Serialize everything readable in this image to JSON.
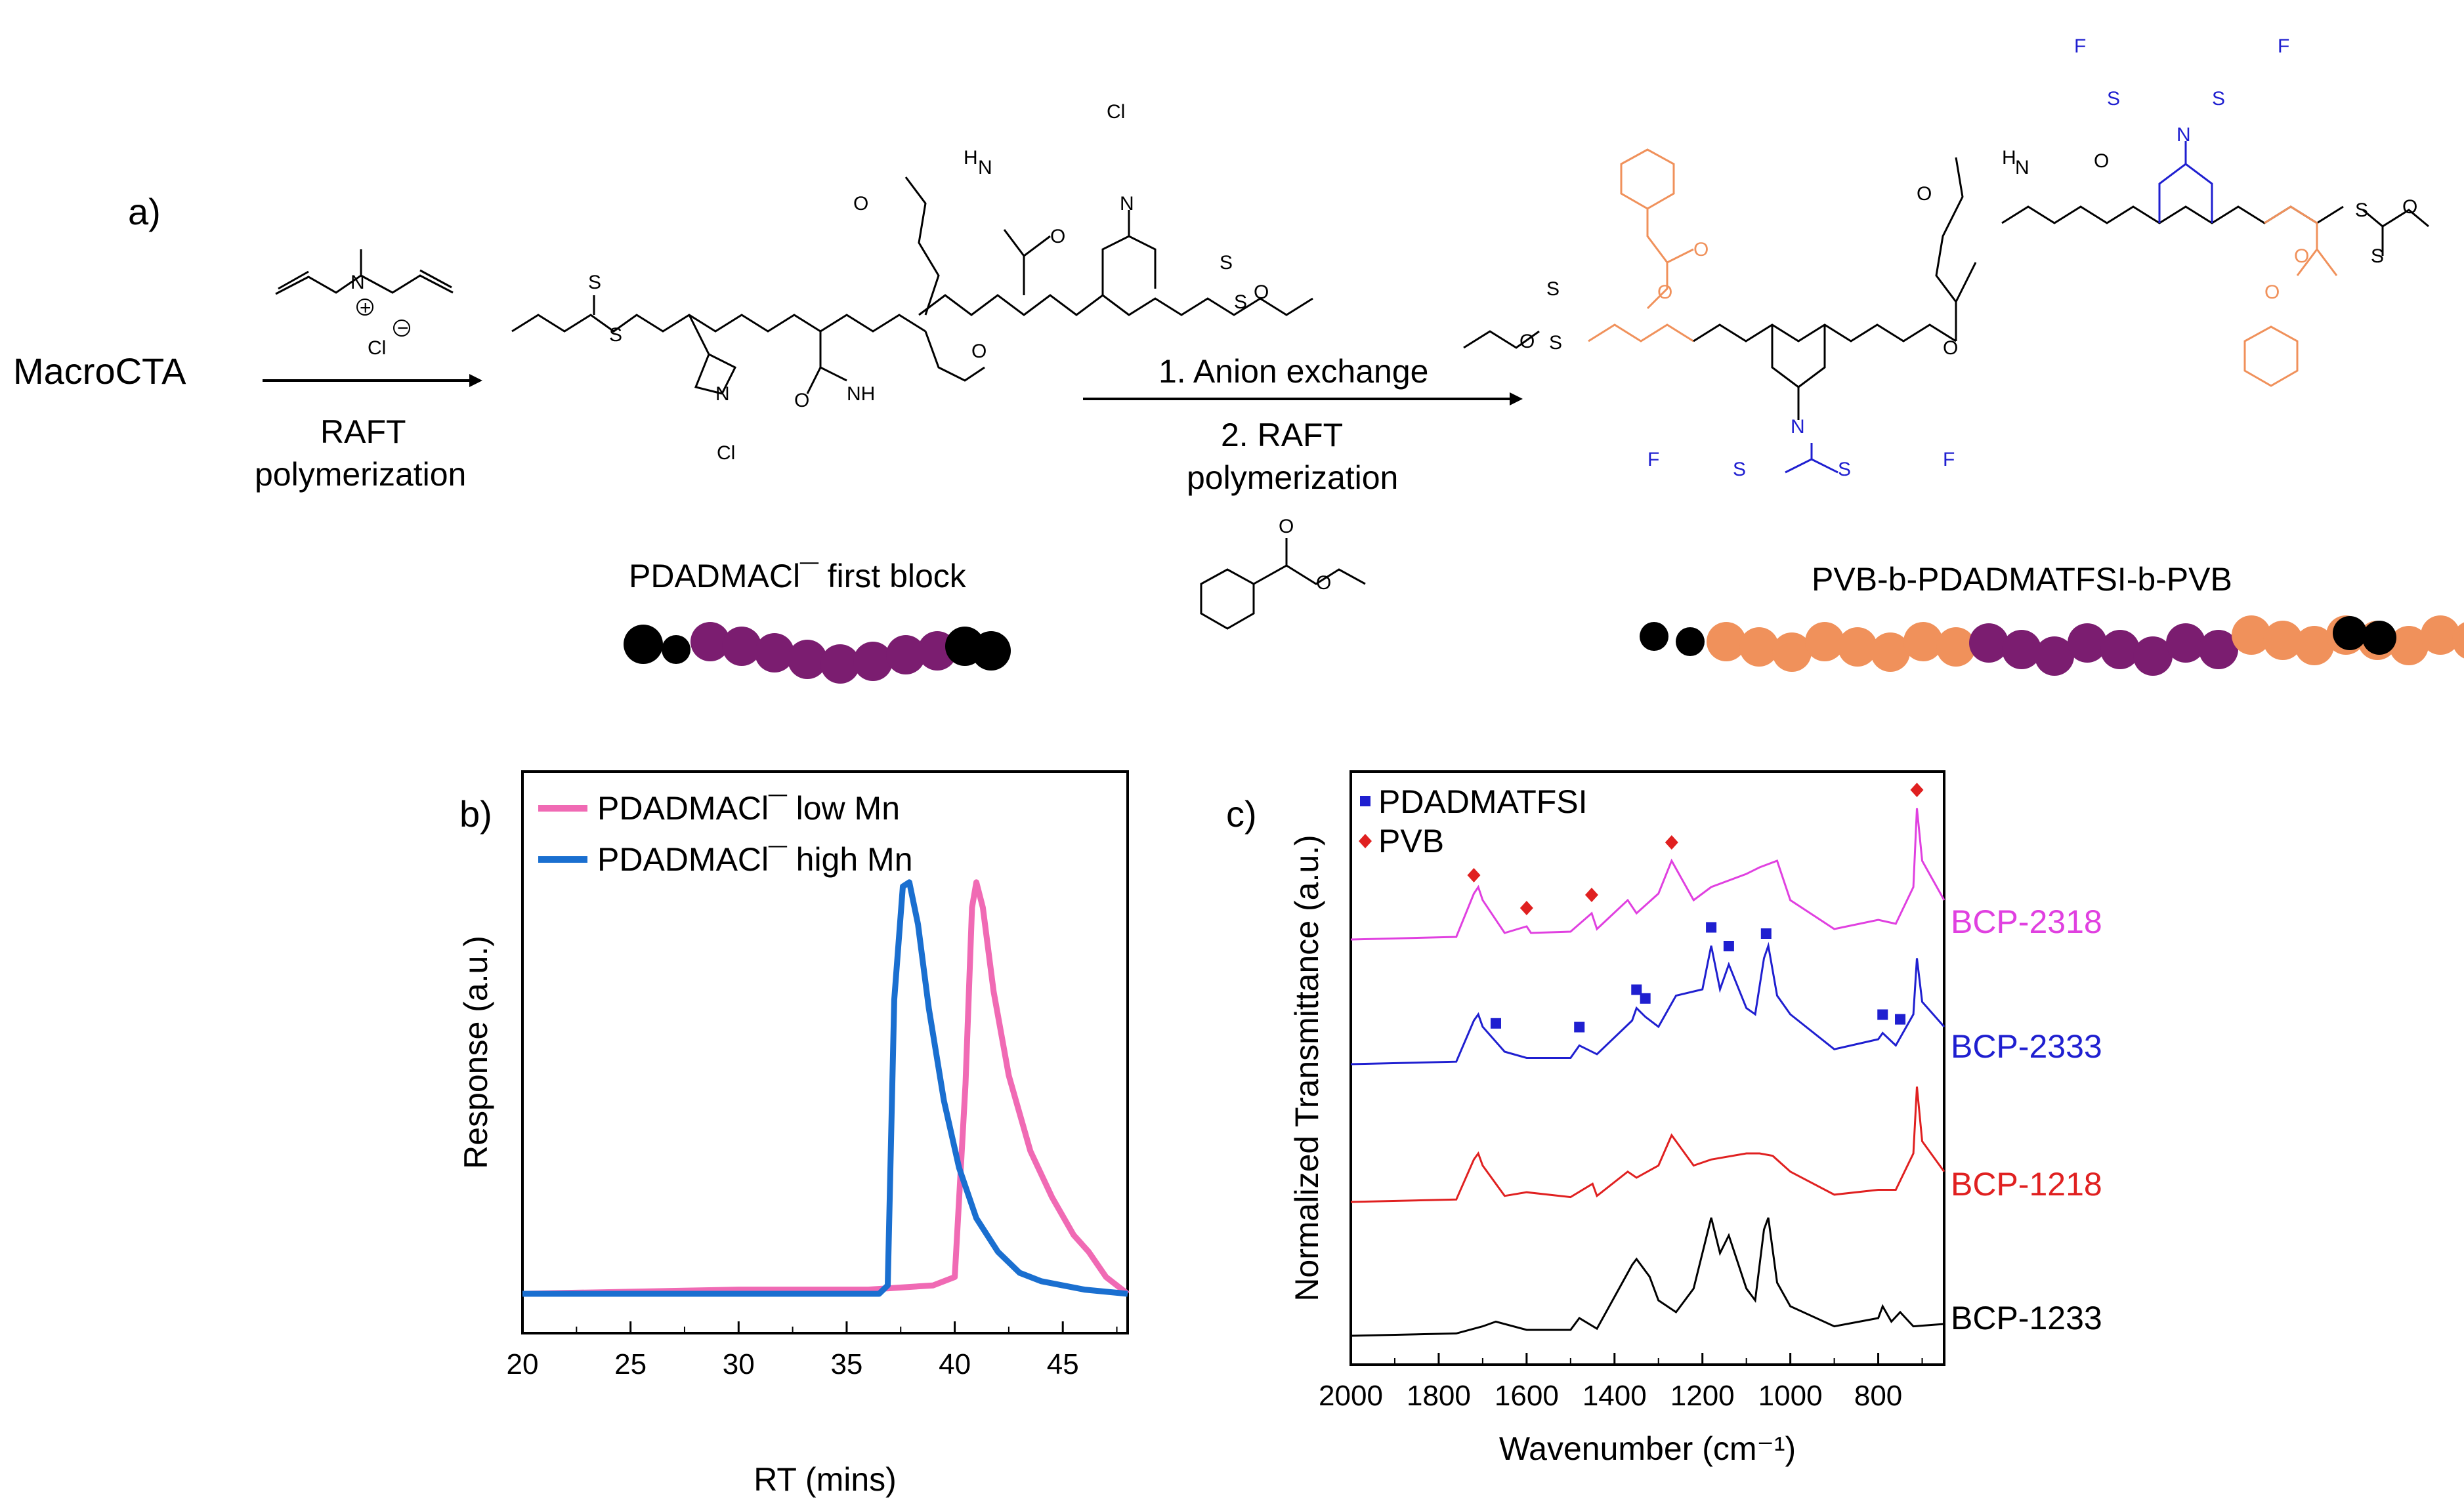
{
  "panel_a": {
    "label": "a)",
    "start": "MacroCTA",
    "step1_condition": "RAFT",
    "step1_condition2": "polymerization",
    "step2_condition1": "1. Anion exchange",
    "step2_condition2a": "2. RAFT",
    "step2_condition2b": "polymerization",
    "first_block_caption": "PDADMACl¯ first block",
    "triblock_caption": "PVB-b-PDADMATFSI-b-PVB",
    "monomer_anion": "Cl",
    "colors": {
      "pvb": "#f0915b",
      "pdadma": "#7b1d70",
      "end": "#000000",
      "tfsi": "#1f1fd0"
    }
  },
  "chart_data": [
    {
      "panel": "b)",
      "type": "line",
      "xlabel": "RT (mins)",
      "ylabel": "Response (a.u.)",
      "xlim": [
        20,
        48
      ],
      "xticks": [
        20,
        25,
        30,
        35,
        40,
        45
      ],
      "legend_position": "top-left",
      "series": [
        {
          "name": "PDADMACl¯ low Mn",
          "color": "#f06ab4",
          "x": [
            20,
            30,
            36,
            39,
            40,
            40.5,
            40.8,
            41,
            41.3,
            41.8,
            42.5,
            43.5,
            44.5,
            45.5,
            46.2,
            47,
            48
          ],
          "y": [
            0,
            0.01,
            0.01,
            0.02,
            0.04,
            0.5,
            0.92,
            0.98,
            0.92,
            0.72,
            0.52,
            0.34,
            0.23,
            0.14,
            0.1,
            0.04,
            0.0
          ]
        },
        {
          "name": "PDADMACl¯ high Mn",
          "color": "#1a6fd0",
          "x": [
            20,
            30,
            36.5,
            36.9,
            37.2,
            37.6,
            37.9,
            38.3,
            38.8,
            39.5,
            40.2,
            41,
            42,
            43,
            44,
            46,
            48
          ],
          "y": [
            0,
            0.0,
            0.0,
            0.02,
            0.7,
            0.97,
            0.98,
            0.88,
            0.68,
            0.46,
            0.3,
            0.18,
            0.1,
            0.05,
            0.03,
            0.01,
            0.0
          ]
        }
      ]
    },
    {
      "panel": "c)",
      "type": "line",
      "xlabel": "Wavenumber (cm⁻¹)",
      "ylabel": "Normalized Transmittance (a.u.)",
      "xlim": [
        2000,
        650
      ],
      "xticks": [
        2000,
        1800,
        1600,
        1400,
        1200,
        1000,
        800
      ],
      "legend_position": "top-left",
      "legend": [
        {
          "name": "PDADMATFSI",
          "marker": "square",
          "color": "#1f1fd0"
        },
        {
          "name": "PVB",
          "marker": "diamond",
          "color": "#e02020"
        }
      ],
      "series": [
        {
          "name": "BCP-2318",
          "color": "#e040e0",
          "offset": 3,
          "x": [
            2000,
            1760,
            1720,
            1710,
            1700,
            1650,
            1600,
            1590,
            1500,
            1452,
            1440,
            1370,
            1350,
            1300,
            1270,
            1220,
            1180,
            1100,
            1070,
            1030,
            1000,
            900,
            800,
            760,
            720,
            712,
            700,
            650
          ],
          "y": [
            0,
            0.02,
            0.35,
            0.4,
            0.3,
            0.05,
            0.1,
            0.05,
            0.06,
            0.2,
            0.08,
            0.3,
            0.2,
            0.35,
            0.6,
            0.3,
            0.4,
            0.5,
            0.55,
            0.6,
            0.3,
            0.08,
            0.15,
            0.12,
            0.4,
            1.0,
            0.6,
            0.3
          ],
          "markers": [
            {
              "x": 1720,
              "type": "PVB"
            },
            {
              "x": 1600,
              "type": "PVB"
            },
            {
              "x": 1452,
              "type": "PVB"
            },
            {
              "x": 1270,
              "type": "PVB"
            },
            {
              "x": 712,
              "type": "PVB"
            }
          ]
        },
        {
          "name": "BCP-2333",
          "color": "#1f1fd0",
          "offset": 2,
          "x": [
            2000,
            1760,
            1720,
            1710,
            1700,
            1650,
            1600,
            1500,
            1480,
            1440,
            1360,
            1350,
            1330,
            1300,
            1260,
            1200,
            1180,
            1160,
            1140,
            1100,
            1080,
            1060,
            1050,
            1030,
            1000,
            900,
            800,
            790,
            760,
            720,
            712,
            700,
            650
          ],
          "y": [
            0,
            0.02,
            0.35,
            0.4,
            0.3,
            0.1,
            0.05,
            0.05,
            0.15,
            0.08,
            0.35,
            0.45,
            0.38,
            0.3,
            0.55,
            0.6,
            0.95,
            0.6,
            0.8,
            0.45,
            0.4,
            0.85,
            0.95,
            0.55,
            0.4,
            0.12,
            0.2,
            0.25,
            0.15,
            0.4,
            0.85,
            0.5,
            0.3
          ],
          "markers": [
            {
              "x": 1670,
              "type": "PDADMATFSI"
            },
            {
              "x": 1480,
              "type": "PDADMATFSI"
            },
            {
              "x": 1350,
              "type": "PDADMATFSI"
            },
            {
              "x": 1330,
              "type": "PDADMATFSI"
            },
            {
              "x": 1180,
              "type": "PDADMATFSI"
            },
            {
              "x": 1140,
              "type": "PDADMATFSI"
            },
            {
              "x": 1055,
              "type": "PDADMATFSI"
            },
            {
              "x": 790,
              "type": "PDADMATFSI"
            },
            {
              "x": 750,
              "type": "PDADMATFSI"
            }
          ]
        },
        {
          "name": "BCP-1218",
          "color": "#e02020",
          "offset": 1,
          "x": [
            2000,
            1760,
            1720,
            1710,
            1700,
            1650,
            1600,
            1500,
            1450,
            1440,
            1370,
            1350,
            1300,
            1270,
            1220,
            1180,
            1100,
            1070,
            1040,
            1000,
            900,
            800,
            760,
            720,
            712,
            700,
            650
          ],
          "y": [
            0,
            0.02,
            0.35,
            0.4,
            0.3,
            0.05,
            0.08,
            0.04,
            0.15,
            0.05,
            0.25,
            0.2,
            0.3,
            0.55,
            0.3,
            0.35,
            0.4,
            0.4,
            0.38,
            0.25,
            0.06,
            0.1,
            0.1,
            0.4,
            0.95,
            0.5,
            0.25
          ]
        },
        {
          "name": "BCP-1233",
          "color": "#000000",
          "offset": 0,
          "x": [
            2000,
            1760,
            1700,
            1670,
            1600,
            1500,
            1480,
            1440,
            1360,
            1350,
            1320,
            1300,
            1260,
            1220,
            1180,
            1160,
            1140,
            1100,
            1080,
            1060,
            1050,
            1030,
            1000,
            900,
            800,
            790,
            770,
            750,
            720,
            650
          ],
          "y": [
            0,
            0.02,
            0.08,
            0.12,
            0.05,
            0.05,
            0.15,
            0.06,
            0.6,
            0.65,
            0.5,
            0.3,
            0.2,
            0.4,
            1.0,
            0.7,
            0.85,
            0.4,
            0.3,
            0.9,
            1.0,
            0.45,
            0.25,
            0.08,
            0.15,
            0.25,
            0.12,
            0.2,
            0.08,
            0.1
          ]
        }
      ]
    }
  ]
}
